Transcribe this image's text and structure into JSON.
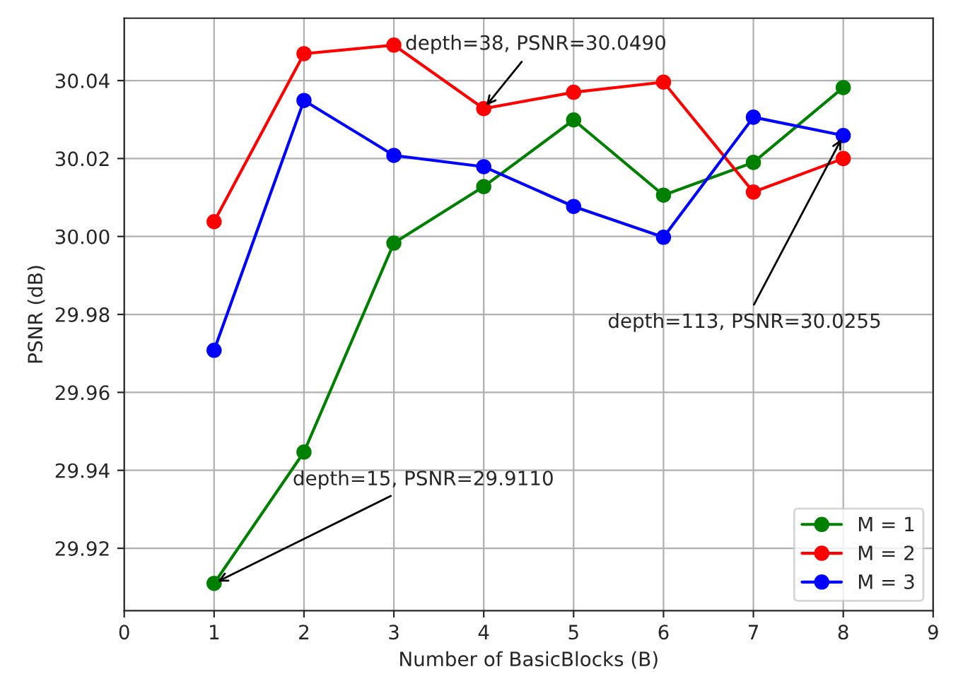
{
  "chart_data": {
    "type": "line",
    "xlabel": "Number of BasicBlocks (B)",
    "ylabel": "PSNR (dB)",
    "x": [
      1,
      2,
      3,
      4,
      5,
      6,
      7,
      8
    ],
    "series": [
      {
        "name": "M = 1",
        "color": "#008000",
        "values": [
          29.911,
          29.9447,
          29.9983,
          30.0128,
          30.0299,
          30.0106,
          30.019,
          30.0382
        ]
      },
      {
        "name": "M = 2",
        "color": "#ff0000",
        "values": [
          30.0038,
          30.0469,
          30.0491,
          30.0328,
          30.037,
          30.0396,
          30.0114,
          30.02
        ]
      },
      {
        "name": "M = 3",
        "color": "#0000ff",
        "values": [
          29.9708,
          30.0349,
          30.0208,
          30.0179,
          30.0077,
          29.9998,
          30.0306,
          30.0259
        ]
      }
    ],
    "xlim": [
      0,
      9
    ],
    "xticks": [
      0,
      1,
      2,
      3,
      4,
      5,
      6,
      7,
      8,
      9
    ],
    "ylim": [
      29.904,
      30.056
    ],
    "yticks": [
      29.92,
      29.94,
      29.96,
      29.98,
      {
        "value": 30,
        "label": "30.00"
      },
      30.02,
      30.04
    ],
    "annotations": [
      {
        "text": "depth=38, PSNR=30.0490",
        "x": 4,
        "y": 30.0328
      },
      {
        "text": "depth=113, PSNR=30.0255",
        "x": 8,
        "y": 30.0259
      },
      {
        "text": "depth=15, PSNR=29.9110",
        "x": 1,
        "y": 29.911
      }
    ],
    "grid": true,
    "legend": "bottom right",
    "marker": "circle",
    "line_style": "solid"
  }
}
